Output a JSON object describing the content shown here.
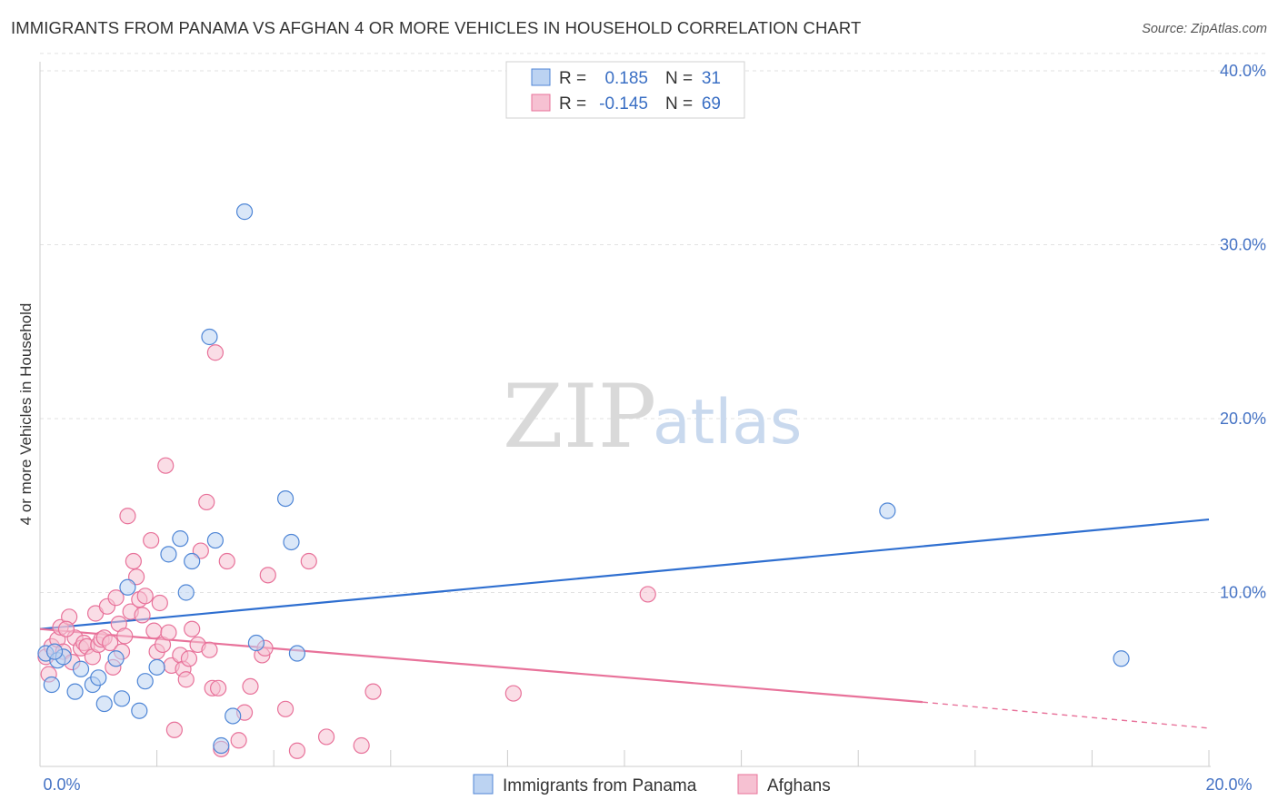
{
  "title": "IMMIGRANTS FROM PANAMA VS AFGHAN 4 OR MORE VEHICLES IN HOUSEHOLD CORRELATION CHART",
  "source": "Source: ZipAtlas.com",
  "watermark": {
    "zip": "ZIP",
    "atlas": "atlas"
  },
  "colors": {
    "blue": "#4f86d6",
    "blue_fill": "#bcd3f2",
    "pink": "#e8729a",
    "pink_fill": "#f6c1d2",
    "axis_text": "#4472c4",
    "grid": "#dddddd"
  },
  "legend_top": {
    "rows": [
      {
        "r_label": "R =",
        "r_value": "0.185",
        "n_label": "N =",
        "n_value": "31"
      },
      {
        "r_label": "R =",
        "r_value": "-0.145",
        "n_label": "N =",
        "n_value": "69"
      }
    ]
  },
  "chart_data": {
    "type": "scatter",
    "title": "IMMIGRANTS FROM PANAMA VS AFGHAN 4 OR MORE VEHICLES IN HOUSEHOLD CORRELATION CHART",
    "xlabel": "",
    "ylabel": "4 or more Vehicles in Household",
    "xlim": [
      0,
      20
    ],
    "ylim": [
      0,
      42
    ],
    "x_tick_labels": [
      "0.0%",
      "20.0%"
    ],
    "y_tick_labels": [
      "10.0%",
      "20.0%",
      "30.0%",
      "40.0%"
    ],
    "y_ticks": [
      10,
      20,
      30,
      40
    ],
    "grid": true,
    "series": [
      {
        "name": "Immigrants from Panama",
        "color": "#4f86d6",
        "r": 0.185,
        "n": 31,
        "points": [
          [
            0.1,
            6.5
          ],
          [
            0.2,
            4.7
          ],
          [
            0.3,
            6.1
          ],
          [
            0.4,
            6.3
          ],
          [
            0.6,
            4.3
          ],
          [
            0.7,
            5.6
          ],
          [
            0.9,
            4.7
          ],
          [
            1.0,
            5.1
          ],
          [
            1.1,
            3.6
          ],
          [
            1.3,
            6.2
          ],
          [
            1.4,
            3.9
          ],
          [
            1.5,
            10.3
          ],
          [
            1.7,
            3.2
          ],
          [
            1.8,
            4.9
          ],
          [
            2.0,
            5.7
          ],
          [
            2.2,
            12.2
          ],
          [
            2.4,
            13.1
          ],
          [
            2.5,
            10.0
          ],
          [
            2.6,
            11.8
          ],
          [
            2.9,
            24.7
          ],
          [
            3.0,
            13.0
          ],
          [
            3.1,
            1.2
          ],
          [
            3.3,
            2.9
          ],
          [
            3.5,
            31.9
          ],
          [
            3.7,
            7.1
          ],
          [
            4.2,
            15.4
          ],
          [
            4.3,
            12.9
          ],
          [
            4.4,
            6.5
          ],
          [
            14.5,
            14.7
          ],
          [
            18.5,
            6.2
          ],
          [
            0.25,
            6.6
          ]
        ]
      },
      {
        "name": "Afghans",
        "color": "#e8729a",
        "r": -0.145,
        "n": 69,
        "points": [
          [
            0.1,
            6.3
          ],
          [
            0.15,
            5.3
          ],
          [
            0.2,
            6.9
          ],
          [
            0.3,
            7.3
          ],
          [
            0.35,
            8.0
          ],
          [
            0.4,
            6.6
          ],
          [
            0.5,
            8.6
          ],
          [
            0.55,
            6.0
          ],
          [
            0.6,
            7.4
          ],
          [
            0.7,
            6.8
          ],
          [
            0.75,
            7.1
          ],
          [
            0.8,
            6.9
          ],
          [
            0.9,
            6.3
          ],
          [
            0.95,
            8.8
          ],
          [
            1.0,
            7.0
          ],
          [
            1.05,
            7.3
          ],
          [
            1.1,
            7.4
          ],
          [
            1.15,
            9.2
          ],
          [
            1.2,
            7.1
          ],
          [
            1.25,
            5.7
          ],
          [
            1.3,
            9.7
          ],
          [
            1.35,
            8.2
          ],
          [
            1.4,
            6.6
          ],
          [
            1.5,
            14.4
          ],
          [
            1.55,
            8.9
          ],
          [
            1.6,
            11.8
          ],
          [
            1.65,
            10.9
          ],
          [
            1.7,
            9.6
          ],
          [
            1.75,
            8.7
          ],
          [
            1.8,
            9.8
          ],
          [
            1.9,
            13.0
          ],
          [
            1.95,
            7.8
          ],
          [
            2.0,
            6.6
          ],
          [
            2.05,
            9.4
          ],
          [
            2.1,
            7.0
          ],
          [
            2.15,
            17.3
          ],
          [
            2.2,
            7.7
          ],
          [
            2.25,
            5.8
          ],
          [
            2.3,
            2.1
          ],
          [
            2.4,
            6.4
          ],
          [
            2.45,
            5.6
          ],
          [
            2.5,
            5.0
          ],
          [
            2.55,
            6.2
          ],
          [
            2.6,
            7.9
          ],
          [
            2.7,
            7.0
          ],
          [
            2.75,
            12.4
          ],
          [
            2.85,
            15.2
          ],
          [
            2.9,
            6.7
          ],
          [
            2.95,
            4.5
          ],
          [
            3.0,
            23.8
          ],
          [
            3.05,
            4.5
          ],
          [
            3.1,
            1.0
          ],
          [
            3.2,
            11.8
          ],
          [
            3.4,
            1.5
          ],
          [
            3.5,
            3.1
          ],
          [
            3.6,
            4.6
          ],
          [
            3.8,
            6.4
          ],
          [
            3.85,
            6.8
          ],
          [
            3.9,
            11.0
          ],
          [
            4.2,
            3.3
          ],
          [
            4.4,
            0.9
          ],
          [
            4.6,
            11.8
          ],
          [
            4.9,
            1.7
          ],
          [
            5.5,
            1.2
          ],
          [
            5.7,
            4.3
          ],
          [
            8.1,
            4.2
          ],
          [
            10.4,
            9.9
          ],
          [
            0.45,
            7.9
          ],
          [
            1.45,
            7.5
          ]
        ]
      }
    ],
    "trend_lines": [
      {
        "series": "Immigrants from Panama",
        "x": [
          0,
          20
        ],
        "y": [
          7.9,
          14.2
        ],
        "style": "solid"
      },
      {
        "series": "Afghans",
        "x": [
          0,
          15.1
        ],
        "y": [
          7.9,
          3.7
        ],
        "style": "solid"
      },
      {
        "series": "Afghans",
        "x": [
          15.1,
          20
        ],
        "y": [
          3.7,
          2.2
        ],
        "style": "dashed"
      }
    ],
    "legend": [
      "Immigrants from Panama",
      "Afghans"
    ]
  }
}
